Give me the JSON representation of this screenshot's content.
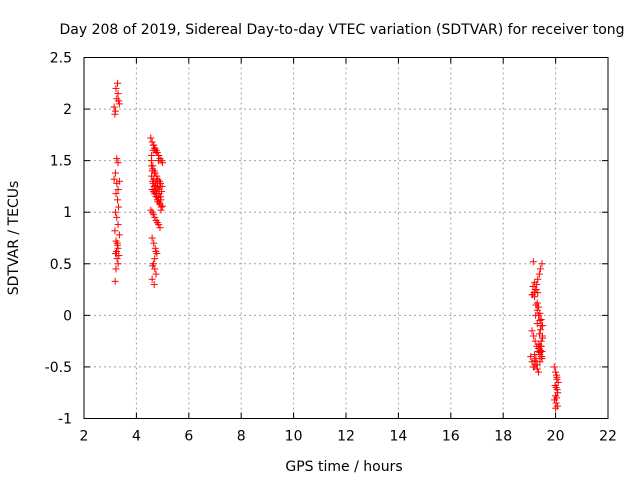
{
  "chart_data": {
    "type": "scatter",
    "title": "Day 208 of 2019, Sidereal Day-to-day VTEC variation (SDTVAR) for receiver tong",
    "xlabel": "GPS time / hours",
    "ylabel": "SDTVAR / TECUs",
    "xlim": [
      2,
      22
    ],
    "ylim": [
      -1,
      2.5
    ],
    "xticks": [
      2,
      4,
      6,
      8,
      10,
      12,
      14,
      16,
      18,
      20,
      22
    ],
    "yticks": [
      -1,
      -0.5,
      0,
      0.5,
      1,
      1.5,
      2,
      2.5
    ],
    "grid": true,
    "marker": "+",
    "colors": {
      "series": "#ff0000",
      "grid": "#a0a0a0",
      "axis": "#000000"
    },
    "series": [
      {
        "name": "SDTVAR",
        "x": [
          3.15,
          3.2,
          3.25,
          3.3,
          3.35,
          3.22,
          3.28,
          3.18,
          3.32,
          3.25,
          3.3,
          3.2,
          3.15,
          3.25,
          3.35,
          3.3,
          3.22,
          3.28,
          3.32,
          3.2,
          3.25,
          3.3,
          3.18,
          3.35,
          3.22,
          3.27,
          3.3,
          3.24,
          3.2,
          3.33,
          3.26,
          3.3,
          3.22,
          3.28,
          3.19,
          4.55,
          4.6,
          4.65,
          4.7,
          4.75,
          4.8,
          4.85,
          4.9,
          4.95,
          5.0,
          4.58,
          4.62,
          4.68,
          4.72,
          4.78,
          4.82,
          4.88,
          4.92,
          4.98,
          4.6,
          4.65,
          4.7,
          4.75,
          4.8,
          4.85,
          4.9,
          4.95,
          4.55,
          4.6,
          4.65,
          4.7,
          4.75,
          4.8,
          4.85,
          4.9,
          4.62,
          4.68,
          4.72,
          4.78,
          4.82,
          4.58,
          4.64,
          4.7,
          4.76,
          4.82,
          4.88,
          4.94,
          4.6,
          4.66,
          4.72,
          4.78,
          4.84,
          4.9,
          4.57,
          4.63,
          4.69,
          4.75,
          4.81,
          4.87,
          4.93,
          4.99,
          4.6,
          4.66,
          4.72,
          4.78,
          4.65,
          4.7,
          4.75,
          4.6,
          4.68,
          4.62,
          4.7,
          4.74,
          4.58,
          4.64,
          4.7,
          4.78,
          4.84,
          4.9,
          4.96,
          4.66,
          4.72,
          4.8,
          4.86,
          4.92,
          19.05,
          19.1,
          19.15,
          19.2,
          19.25,
          19.3,
          19.35,
          19.4,
          19.45,
          19.5,
          19.12,
          19.18,
          19.22,
          19.28,
          19.32,
          19.38,
          19.42,
          19.48,
          19.15,
          19.2,
          19.25,
          19.3,
          19.35,
          19.4,
          19.45,
          19.1,
          19.16,
          19.22,
          19.28,
          19.34,
          19.4,
          19.46,
          19.2,
          19.25,
          19.3,
          19.35,
          19.4,
          19.45,
          19.5,
          19.3,
          19.35,
          19.4,
          19.45,
          19.5,
          19.42,
          19.38,
          19.44,
          19.48,
          19.46,
          19.4,
          19.1,
          19.14,
          19.2,
          19.26,
          19.32,
          19.36,
          19.42,
          19.48,
          19.18,
          19.24,
          19.3,
          19.95,
          20.0,
          20.05,
          20.1,
          19.98,
          20.02,
          20.06,
          20.08,
          20.0,
          20.04,
          19.96,
          20.02,
          20.07,
          20.0,
          20.05,
          20.03
        ],
        "y": [
          2.02,
          1.98,
          2.1,
          2.15,
          2.05,
          2.2,
          2.25,
          1.95,
          2.08,
          1.52,
          1.48,
          1.38,
          1.32,
          1.28,
          1.3,
          1.22,
          1.18,
          1.12,
          1.05,
          1.0,
          0.95,
          0.88,
          0.82,
          0.78,
          0.72,
          0.7,
          0.65,
          0.62,
          0.6,
          0.58,
          0.55,
          0.5,
          0.45,
          0.68,
          0.33,
          1.72,
          1.68,
          1.65,
          1.62,
          1.6,
          1.58,
          1.55,
          1.52,
          1.5,
          1.48,
          1.45,
          1.42,
          1.4,
          1.38,
          1.35,
          1.32,
          1.3,
          1.28,
          1.25,
          1.22,
          1.2,
          1.18,
          1.15,
          1.12,
          1.1,
          1.08,
          1.05,
          1.02,
          1.0,
          0.98,
          0.95,
          0.92,
          0.9,
          0.88,
          0.85,
          1.3,
          1.25,
          1.2,
          1.15,
          1.1,
          1.35,
          1.28,
          1.22,
          1.18,
          1.12,
          1.08,
          1.02,
          1.4,
          1.32,
          1.26,
          1.2,
          1.14,
          1.08,
          1.5,
          1.45,
          1.38,
          1.3,
          1.24,
          1.18,
          1.12,
          1.06,
          0.75,
          0.7,
          0.65,
          0.6,
          0.5,
          0.45,
          0.4,
          0.35,
          0.3,
          0.48,
          0.55,
          0.62,
          1.55,
          1.6,
          1.62,
          1.58,
          1.5,
          1.25,
          1.2,
          1.65,
          1.6,
          1.3,
          1.22,
          1.15,
          -0.4,
          -0.45,
          -0.5,
          -0.38,
          -0.42,
          -0.48,
          -0.35,
          -0.3,
          -0.25,
          -0.2,
          0.2,
          0.22,
          0.25,
          0.3,
          0.35,
          0.4,
          0.45,
          0.5,
          0.52,
          0.18,
          0.1,
          0.05,
          0.0,
          -0.05,
          -0.1,
          -0.15,
          -0.2,
          -0.25,
          -0.3,
          -0.32,
          -0.36,
          -0.4,
          -0.44,
          -0.48,
          -0.52,
          -0.55,
          -0.38,
          -0.3,
          -0.22,
          0.12,
          0.08,
          0.02,
          -0.04,
          -0.1,
          -0.14,
          -0.18,
          -0.3,
          -0.35,
          -0.4,
          -0.45,
          0.2,
          0.28,
          0.32,
          0.25,
          0.22,
          -0.28,
          -0.34,
          -0.42,
          -0.5,
          0.0,
          -0.08,
          -0.5,
          -0.55,
          -0.6,
          -0.65,
          -0.68,
          -0.7,
          -0.72,
          -0.75,
          -0.78,
          -0.8,
          -0.82,
          -0.85,
          -0.88,
          -0.9,
          -0.62,
          -0.58
        ]
      }
    ]
  }
}
